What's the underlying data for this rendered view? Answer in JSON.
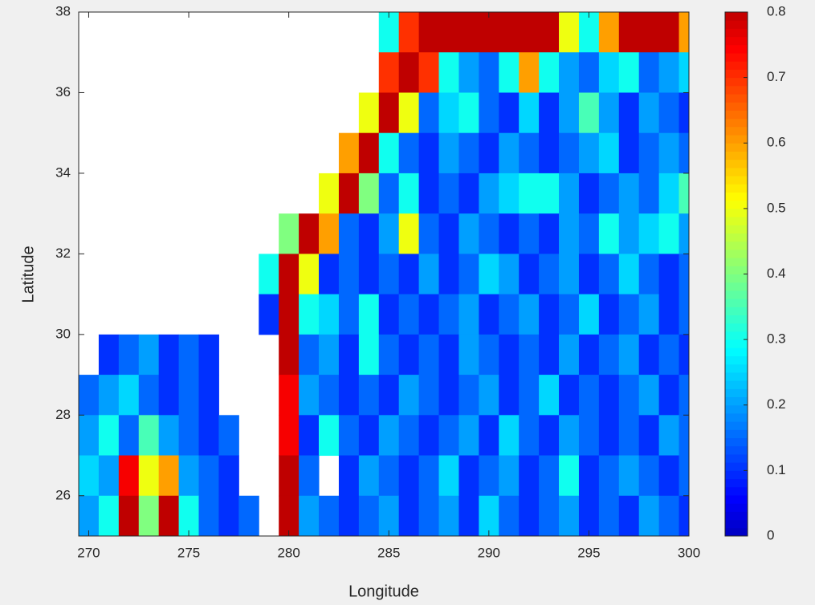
{
  "chart_data": {
    "type": "heatmap",
    "x_label": "Longitude",
    "y_label": "Latitude",
    "x": [
      270,
      271,
      272,
      273,
      274,
      275,
      276,
      277,
      278,
      279,
      280,
      281,
      282,
      283,
      284,
      285,
      286,
      287,
      288,
      289,
      290,
      291,
      292,
      293,
      294,
      295,
      296,
      297,
      298,
      299,
      300
    ],
    "y": [
      37.5,
      36.5,
      35.5,
      34.5,
      33.5,
      32.5,
      31.5,
      30.5,
      29.5,
      28.5,
      27.5,
      26.5,
      25.5
    ],
    "z": [
      [
        null,
        null,
        null,
        null,
        null,
        null,
        null,
        null,
        null,
        null,
        null,
        null,
        null,
        null,
        null,
        0.3,
        0.7,
        0.8,
        0.8,
        0.8,
        0.8,
        0.8,
        0.8,
        0.8,
        0.5,
        0.3,
        0.6,
        0.8,
        0.8,
        0.8,
        0.6
      ],
      [
        null,
        null,
        null,
        null,
        null,
        null,
        null,
        null,
        null,
        null,
        null,
        null,
        null,
        null,
        null,
        0.7,
        0.8,
        0.7,
        0.3,
        0.2,
        0.15,
        0.3,
        0.6,
        0.3,
        0.2,
        0.15,
        0.25,
        0.3,
        0.15,
        0.2,
        0.25
      ],
      [
        null,
        null,
        null,
        null,
        null,
        null,
        null,
        null,
        null,
        null,
        null,
        null,
        null,
        null,
        0.5,
        0.8,
        0.5,
        0.15,
        0.25,
        0.3,
        0.15,
        0.1,
        0.25,
        0.1,
        0.2,
        0.35,
        0.2,
        0.1,
        0.2,
        0.15,
        0.1
      ],
      [
        null,
        null,
        null,
        null,
        null,
        null,
        null,
        null,
        null,
        null,
        null,
        null,
        null,
        0.6,
        0.8,
        0.3,
        0.15,
        0.1,
        0.2,
        0.15,
        0.1,
        0.2,
        0.15,
        0.1,
        0.15,
        0.2,
        0.25,
        0.1,
        0.15,
        0.2,
        0.15
      ],
      [
        null,
        null,
        null,
        null,
        null,
        null,
        null,
        null,
        null,
        null,
        null,
        null,
        0.5,
        0.8,
        0.4,
        0.15,
        0.3,
        0.1,
        0.15,
        0.1,
        0.2,
        0.25,
        0.3,
        0.3,
        0.2,
        0.1,
        0.15,
        0.2,
        0.15,
        0.25,
        0.35
      ],
      [
        null,
        null,
        null,
        null,
        null,
        null,
        null,
        null,
        null,
        null,
        0.4,
        0.8,
        0.6,
        0.15,
        0.1,
        0.2,
        0.5,
        0.15,
        0.1,
        0.2,
        0.15,
        0.1,
        0.15,
        0.1,
        0.2,
        0.15,
        0.3,
        0.2,
        0.25,
        0.3,
        0.2
      ],
      [
        null,
        null,
        null,
        null,
        null,
        null,
        null,
        null,
        null,
        0.3,
        0.8,
        0.5,
        0.1,
        0.15,
        0.1,
        0.15,
        0.1,
        0.2,
        0.1,
        0.15,
        0.25,
        0.2,
        0.1,
        0.15,
        0.2,
        0.1,
        0.15,
        0.25,
        0.15,
        0.1,
        0.15
      ],
      [
        null,
        null,
        null,
        null,
        null,
        null,
        null,
        null,
        null,
        0.1,
        0.8,
        0.3,
        0.25,
        0.15,
        0.3,
        0.1,
        0.15,
        0.1,
        0.15,
        0.2,
        0.1,
        0.15,
        0.2,
        0.1,
        0.15,
        0.25,
        0.1,
        0.15,
        0.2,
        0.1,
        0.15
      ],
      [
        null,
        0.1,
        0.15,
        0.2,
        0.1,
        0.15,
        0.1,
        null,
        null,
        null,
        0.8,
        0.15,
        0.2,
        0.1,
        0.3,
        0.15,
        0.1,
        0.15,
        0.1,
        0.2,
        0.15,
        0.1,
        0.15,
        0.1,
        0.2,
        0.1,
        0.15,
        0.2,
        0.1,
        0.15,
        0.1
      ],
      [
        0.15,
        0.2,
        0.25,
        0.15,
        0.1,
        0.15,
        0.1,
        null,
        null,
        null,
        0.75,
        0.2,
        0.15,
        0.1,
        0.15,
        0.1,
        0.2,
        0.15,
        0.1,
        0.15,
        0.2,
        0.1,
        0.15,
        0.25,
        0.1,
        0.15,
        0.1,
        0.15,
        0.2,
        0.1,
        0.15
      ],
      [
        0.2,
        0.3,
        0.15,
        0.35,
        0.2,
        0.15,
        0.1,
        0.15,
        null,
        null,
        0.75,
        0.1,
        0.3,
        0.15,
        0.1,
        0.2,
        0.15,
        0.1,
        0.15,
        0.2,
        0.1,
        0.25,
        0.15,
        0.1,
        0.2,
        0.15,
        0.1,
        0.15,
        0.1,
        0.2,
        0.15
      ],
      [
        0.25,
        0.2,
        0.75,
        0.5,
        0.6,
        0.2,
        0.15,
        0.1,
        null,
        null,
        0.8,
        0.15,
        null,
        0.1,
        0.2,
        0.15,
        0.1,
        0.15,
        0.25,
        0.1,
        0.15,
        0.2,
        0.1,
        0.15,
        0.3,
        0.1,
        0.15,
        0.2,
        0.15,
        0.1,
        0.15
      ],
      [
        0.2,
        0.3,
        0.8,
        0.4,
        0.8,
        0.3,
        0.15,
        0.1,
        0.15,
        null,
        0.8,
        0.2,
        0.15,
        0.1,
        0.15,
        0.2,
        0.1,
        0.15,
        0.2,
        0.1,
        0.25,
        0.15,
        0.1,
        0.15,
        0.2,
        0.1,
        0.15,
        0.1,
        0.2,
        0.15,
        0.1
      ]
    ],
    "xlim": [
      269.5,
      300
    ],
    "ylim": [
      25,
      38
    ],
    "xticks": [
      270,
      275,
      280,
      285,
      290,
      295,
      300
    ],
    "yticks": [
      26,
      28,
      30,
      32,
      34,
      36,
      38
    ],
    "colormap": "jet",
    "clim": [
      0,
      0.8
    ],
    "cticks": [
      0,
      0.1,
      0.2,
      0.3,
      0.4,
      0.5,
      0.6,
      0.7,
      0.8
    ]
  }
}
